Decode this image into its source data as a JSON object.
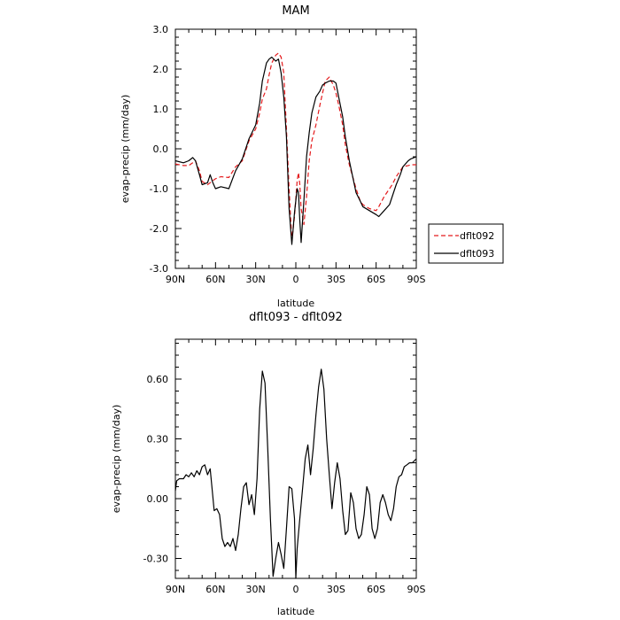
{
  "chart_data": [
    {
      "type": "line",
      "title": "MAM",
      "xlabel": "latitude",
      "ylabel": "evap-precip (mm/day)",
      "xlim": [
        90,
        -90
      ],
      "ylim": [
        -3.0,
        3.0
      ],
      "xticks": [
        90,
        60,
        30,
        0,
        -30,
        -60,
        -90
      ],
      "xtick_labels": [
        "90N",
        "60N",
        "30N",
        "0",
        "30S",
        "60S",
        "90S"
      ],
      "yticks": [
        -3.0,
        -2.0,
        -1.0,
        0.0,
        1.0,
        2.0,
        3.0
      ],
      "ytick_labels": [
        "-3.0",
        "-2.0",
        "-1.0",
        "0.0",
        "1.0",
        "2.0",
        "3.0"
      ],
      "legend_position": "right",
      "series": [
        {
          "name": "dflt092",
          "color": "#e41a1c",
          "style": "dashed",
          "x": [
            90,
            84,
            80,
            77,
            75,
            72,
            70,
            66,
            64,
            62,
            60,
            56,
            50,
            45,
            40,
            38,
            35,
            30,
            27,
            25,
            22,
            20,
            18,
            15,
            13,
            11,
            9,
            7,
            5,
            3,
            1,
            -1,
            -2,
            -3,
            -4,
            -6,
            -8,
            -10,
            -12,
            -15,
            -18,
            -20,
            -22,
            -25,
            -28,
            -30,
            -32,
            -35,
            -37,
            -40,
            -45,
            -48,
            -50,
            -55,
            -60,
            -62,
            -66,
            -70,
            -72,
            -75,
            -78,
            -80,
            -84,
            -86,
            -90
          ],
          "y": [
            -0.38,
            -0.42,
            -0.42,
            -0.35,
            -0.3,
            -0.55,
            -0.82,
            -0.9,
            -0.85,
            -0.8,
            -0.75,
            -0.7,
            -0.72,
            -0.45,
            -0.3,
            -0.1,
            0.2,
            0.5,
            0.9,
            1.25,
            1.5,
            1.85,
            2.15,
            2.35,
            2.4,
            2.3,
            1.9,
            0.5,
            -1.0,
            -2.3,
            -1.7,
            -0.8,
            -0.6,
            -0.9,
            -1.5,
            -1.9,
            -1.2,
            -0.3,
            0.2,
            0.6,
            1.1,
            1.4,
            1.7,
            1.8,
            1.6,
            1.4,
            1.1,
            0.6,
            0.1,
            -0.4,
            -1.0,
            -1.3,
            -1.4,
            -1.5,
            -1.55,
            -1.45,
            -1.2,
            -1.0,
            -0.9,
            -0.7,
            -0.55,
            -0.45,
            -0.42,
            -0.4,
            -0.4
          ]
        },
        {
          "name": "dflt093",
          "color": "#000000",
          "style": "solid",
          "x": [
            90,
            84,
            80,
            77,
            75,
            72,
            70,
            66,
            64,
            62,
            60,
            56,
            50,
            45,
            40,
            38,
            35,
            30,
            27,
            25,
            22,
            20,
            18,
            15,
            13,
            11,
            9,
            7,
            5,
            3,
            1,
            -1,
            -2,
            -3,
            -4,
            -6,
            -8,
            -10,
            -12,
            -15,
            -18,
            -20,
            -22,
            -25,
            -28,
            -30,
            -32,
            -35,
            -37,
            -40,
            -45,
            -48,
            -50,
            -55,
            -60,
            -62,
            -66,
            -70,
            -72,
            -75,
            -78,
            -80,
            -84,
            -86,
            -90
          ],
          "y": [
            -0.3,
            -0.35,
            -0.3,
            -0.22,
            -0.3,
            -0.65,
            -0.9,
            -0.85,
            -0.65,
            -0.85,
            -1.0,
            -0.95,
            -1.0,
            -0.55,
            -0.25,
            -0.05,
            0.25,
            0.6,
            1.15,
            1.7,
            2.15,
            2.25,
            2.3,
            2.2,
            2.25,
            1.9,
            1.3,
            0.3,
            -1.5,
            -2.4,
            -1.6,
            -1.0,
            -1.1,
            -1.8,
            -2.35,
            -1.3,
            -0.2,
            0.4,
            0.9,
            1.3,
            1.45,
            1.6,
            1.65,
            1.7,
            1.7,
            1.65,
            1.3,
            0.8,
            0.3,
            -0.3,
            -1.1,
            -1.3,
            -1.45,
            -1.55,
            -1.65,
            -1.7,
            -1.55,
            -1.4,
            -1.2,
            -0.9,
            -0.65,
            -0.45,
            -0.3,
            -0.25,
            -0.2
          ]
        }
      ]
    },
    {
      "type": "line",
      "title": "dflt093 - dflt092",
      "xlabel": "latitude",
      "ylabel": "evap-precip (mm/day)",
      "xlim": [
        90,
        -90
      ],
      "ylim": [
        -0.4,
        0.8
      ],
      "xticks": [
        90,
        60,
        30,
        0,
        -30,
        -60,
        -90
      ],
      "xtick_labels": [
        "90N",
        "60N",
        "30N",
        "0",
        "30S",
        "60S",
        "90S"
      ],
      "yticks": [
        -0.3,
        0.0,
        0.3,
        0.6
      ],
      "ytick_labels": [
        "-0.30",
        "0.00",
        "0.30",
        "0.60"
      ],
      "series": [
        {
          "color": "#000000",
          "style": "solid",
          "x": [
            90,
            89,
            87,
            84,
            82,
            80,
            78,
            76,
            74,
            72,
            70,
            68,
            66,
            64,
            63,
            61,
            59,
            57,
            55,
            53,
            51,
            49,
            47,
            45,
            43,
            41,
            39,
            37,
            35,
            33,
            31,
            29,
            27,
            25,
            23,
            21,
            19,
            17,
            15,
            13,
            11,
            9,
            7,
            5,
            3,
            1,
            0,
            -1,
            -3,
            -5,
            -7,
            -9,
            -11,
            -13,
            -15,
            -17,
            -19,
            -21,
            -23,
            -25,
            -27,
            -29,
            -31,
            -33,
            -35,
            -37,
            -39,
            -41,
            -43,
            -45,
            -47,
            -49,
            -51,
            -53,
            -55,
            -57,
            -59,
            -61,
            -63,
            -65,
            -67,
            -69,
            -71,
            -73,
            -75,
            -77,
            -79,
            -81,
            -83,
            -85,
            -87,
            -90
          ],
          "y": [
            0.04,
            0.09,
            0.1,
            0.1,
            0.12,
            0.11,
            0.13,
            0.11,
            0.14,
            0.12,
            0.16,
            0.17,
            0.12,
            0.15,
            0.08,
            -0.06,
            -0.05,
            -0.08,
            -0.2,
            -0.24,
            -0.22,
            -0.24,
            -0.2,
            -0.26,
            -0.18,
            -0.05,
            0.06,
            0.08,
            -0.03,
            0.02,
            -0.08,
            0.1,
            0.45,
            0.64,
            0.58,
            0.25,
            -0.1,
            -0.39,
            -0.3,
            -0.22,
            -0.28,
            -0.35,
            -0.15,
            0.06,
            0.05,
            -0.1,
            -0.4,
            -0.25,
            -0.1,
            0.05,
            0.2,
            0.27,
            0.12,
            0.25,
            0.42,
            0.56,
            0.65,
            0.55,
            0.3,
            0.12,
            -0.05,
            0.08,
            0.18,
            0.1,
            -0.06,
            -0.18,
            -0.16,
            0.03,
            -0.02,
            -0.15,
            -0.2,
            -0.18,
            -0.08,
            0.06,
            0.02,
            -0.15,
            -0.2,
            -0.15,
            -0.02,
            0.02,
            -0.02,
            -0.08,
            -0.11,
            -0.05,
            0.06,
            0.11,
            0.12,
            0.16,
            0.17,
            0.18,
            0.18,
            0.2
          ]
        }
      ]
    }
  ]
}
